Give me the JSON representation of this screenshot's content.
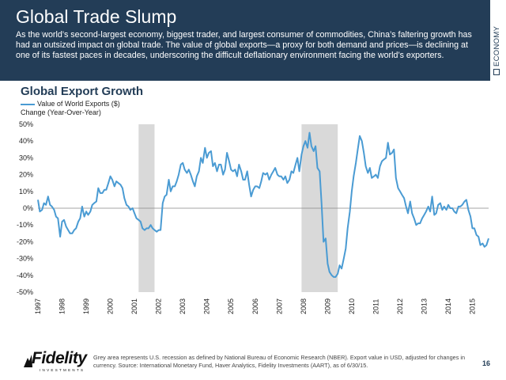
{
  "header": {
    "title": "Global Trade Slump",
    "subtitle": "As the world’s second-largest economy, biggest trader, and largest consumer of commodities, China’s faltering growth has had an outsized impact on global trade. The value of global exports—a proxy for both demand and prices—is declining at one of its fastest paces in decades, underscoring the difficult deflationary environment facing the world’s exporters.",
    "side_label": "ECONOMY"
  },
  "chart_data": {
    "type": "line",
    "title": "Global Export Growth",
    "ylabel": "Change (Year-Over-Year)",
    "ylim": [
      -50,
      50
    ],
    "y_ticks": [
      "50%",
      "40%",
      "30%",
      "20%",
      "10%",
      "0%",
      "-10%",
      "-20%",
      "-30%",
      "-40%",
      "-50%"
    ],
    "x_ticks": [
      "1997",
      "1998",
      "1999",
      "2000",
      "2001",
      "2002",
      "2003",
      "2004",
      "2005",
      "2006",
      "2007",
      "2008",
      "2009",
      "2010",
      "2011",
      "2012",
      "2013",
      "2014",
      "2015"
    ],
    "x_range": [
      1997.0,
      2015.67
    ],
    "recessions": [
      [
        2001.17,
        2001.83
      ],
      [
        2007.92,
        2009.42
      ]
    ],
    "series": [
      {
        "name": "Value of World Exports ($)",
        "color": "#4a9bd3",
        "x": [
          1997.0,
          1997.08,
          1997.17,
          1997.25,
          1997.33,
          1997.42,
          1997.5,
          1997.58,
          1997.67,
          1997.75,
          1997.83,
          1997.92,
          1998.0,
          1998.08,
          1998.17,
          1998.25,
          1998.33,
          1998.42,
          1998.5,
          1998.58,
          1998.67,
          1998.75,
          1998.83,
          1998.92,
          1999.0,
          1999.08,
          1999.17,
          1999.25,
          1999.33,
          1999.42,
          1999.5,
          1999.58,
          1999.67,
          1999.75,
          1999.83,
          1999.92,
          2000.0,
          2000.08,
          2000.17,
          2000.25,
          2000.33,
          2000.42,
          2000.5,
          2000.58,
          2000.67,
          2000.75,
          2000.83,
          2000.92,
          2001.0,
          2001.08,
          2001.17,
          2001.25,
          2001.33,
          2001.42,
          2001.5,
          2001.58,
          2001.67,
          2001.75,
          2001.83,
          2001.92,
          2002.0,
          2002.08,
          2002.17,
          2002.25,
          2002.33,
          2002.42,
          2002.5,
          2002.58,
          2002.67,
          2002.75,
          2002.83,
          2002.92,
          2003.0,
          2003.08,
          2003.17,
          2003.25,
          2003.33,
          2003.42,
          2003.5,
          2003.58,
          2003.67,
          2003.75,
          2003.83,
          2003.92,
          2004.0,
          2004.08,
          2004.17,
          2004.25,
          2004.33,
          2004.42,
          2004.5,
          2004.58,
          2004.67,
          2004.75,
          2004.83,
          2004.92,
          2005.0,
          2005.08,
          2005.17,
          2005.25,
          2005.33,
          2005.42,
          2005.5,
          2005.58,
          2005.67,
          2005.75,
          2005.83,
          2005.92,
          2006.0,
          2006.08,
          2006.17,
          2006.25,
          2006.33,
          2006.42,
          2006.5,
          2006.58,
          2006.67,
          2006.75,
          2006.83,
          2006.92,
          2007.0,
          2007.08,
          2007.17,
          2007.25,
          2007.33,
          2007.42,
          2007.5,
          2007.58,
          2007.67,
          2007.75,
          2007.83,
          2007.92,
          2008.0,
          2008.08,
          2008.17,
          2008.25,
          2008.33,
          2008.42,
          2008.5,
          2008.58,
          2008.67,
          2008.75,
          2008.83,
          2008.92,
          2009.0,
          2009.08,
          2009.17,
          2009.25,
          2009.33,
          2009.42,
          2009.5,
          2009.58,
          2009.67,
          2009.75,
          2009.83,
          2009.92,
          2010.0,
          2010.08,
          2010.17,
          2010.25,
          2010.33,
          2010.42,
          2010.5,
          2010.58,
          2010.67,
          2010.75,
          2010.83,
          2010.92,
          2011.0,
          2011.08,
          2011.17,
          2011.25,
          2011.33,
          2011.42,
          2011.5,
          2011.58,
          2011.67,
          2011.75,
          2011.83,
          2011.92,
          2012.0,
          2012.08,
          2012.17,
          2012.25,
          2012.33,
          2012.42,
          2012.5,
          2012.58,
          2012.67,
          2012.75,
          2012.83,
          2012.92,
          2013.0,
          2013.08,
          2013.17,
          2013.25,
          2013.33,
          2013.42,
          2013.5,
          2013.58,
          2013.67,
          2013.75,
          2013.83,
          2013.92,
          2014.0,
          2014.08,
          2014.17,
          2014.25,
          2014.33,
          2014.42,
          2014.5,
          2014.58,
          2014.67,
          2014.75,
          2014.83,
          2014.92,
          2015.0,
          2015.08,
          2015.17,
          2015.25,
          2015.33,
          2015.42,
          2015.5,
          2015.58,
          2015.67
        ],
        "y": [
          5,
          -2,
          -1,
          3,
          2,
          7,
          2,
          1,
          -1,
          -5,
          -6,
          -17,
          -8,
          -7,
          -11,
          -13,
          -15,
          -15,
          -13,
          -12,
          -8,
          -6,
          1,
          -5,
          -2,
          -4,
          -2,
          2,
          3,
          4,
          12,
          9,
          9,
          11,
          11,
          15,
          19,
          17,
          13,
          16,
          15,
          14,
          12,
          6,
          2,
          1,
          -1,
          0,
          -3,
          -6,
          -7,
          -8,
          -12,
          -13,
          -12,
          -12,
          -10,
          -12,
          -13,
          -14,
          -13,
          -13,
          3,
          7,
          8,
          17,
          10,
          13,
          13,
          16,
          20,
          26,
          27,
          23,
          21,
          23,
          20,
          16,
          13,
          19,
          22,
          30,
          27,
          36,
          30,
          33,
          34,
          25,
          27,
          22,
          26,
          26,
          20,
          23,
          33,
          28,
          23,
          22,
          23,
          19,
          26,
          22,
          17,
          17,
          22,
          14,
          7,
          11,
          13,
          13,
          12,
          16,
          21,
          20,
          21,
          17,
          20,
          22,
          24,
          20,
          19,
          19,
          17,
          19,
          15,
          17,
          22,
          21,
          26,
          30,
          22,
          32,
          37,
          40,
          36,
          45,
          37,
          34,
          37,
          24,
          22,
          3,
          -20,
          -18,
          -33,
          -38,
          -40,
          -41,
          -41,
          -39,
          -34,
          -36,
          -30,
          -24,
          -12,
          -2,
          10,
          19,
          27,
          35,
          43,
          40,
          33,
          25,
          21,
          24,
          18,
          19,
          20,
          18,
          25,
          28,
          29,
          30,
          39,
          32,
          33,
          35,
          18,
          12,
          10,
          8,
          6,
          1,
          -3,
          4,
          -3,
          -6,
          -10,
          -9,
          -9,
          -6,
          -4,
          -2,
          1,
          -2,
          7,
          -4,
          -3,
          2,
          3,
          -1,
          1,
          -1,
          2,
          0,
          0,
          -2,
          -3,
          1,
          1,
          2,
          4,
          5,
          -1,
          -5,
          -12,
          -12,
          -16,
          -17,
          -22,
          -21,
          -23,
          -22,
          -18
        ]
      }
    ]
  },
  "footer": {
    "logo_text": "Fidelity",
    "logo_sub": "INVESTMENTS",
    "note": "Grey area represents U.S. recession as defined by National Bureau of Economic Research (NBER). Export value in USD, adjusted for changes in currency. Source: International Monetary Fund, Haver Analytics, Fidelity Investments (AART), as of 6/30/15.",
    "page_number": "16"
  }
}
